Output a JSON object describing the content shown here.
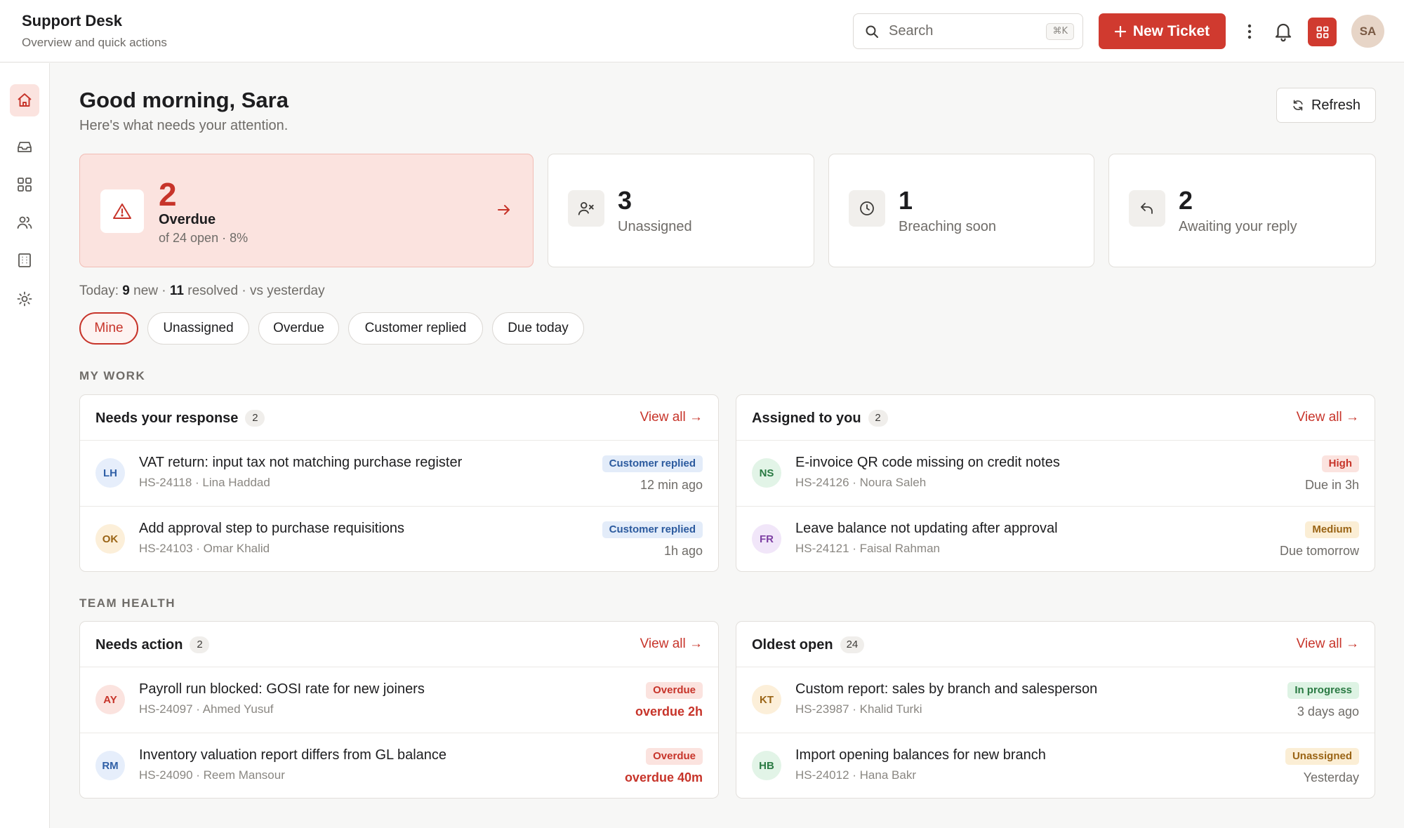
{
  "header": {
    "title": "Support Desk",
    "subtitle": "Overview and quick actions",
    "search_placeholder": "Search",
    "search_shortcut": "⌘K",
    "new_ticket_label": "New Ticket",
    "user_initials": "SA"
  },
  "greeting": {
    "title": "Good morning, Sara",
    "subtitle": "Here's what needs your attention.",
    "refresh_label": "Refresh"
  },
  "stats": {
    "overdue": {
      "value": "2",
      "label": "Overdue",
      "meta": "of 24 open · 8%"
    },
    "unassigned": {
      "value": "3",
      "label": "Unassigned"
    },
    "breaching": {
      "value": "1",
      "label": "Breaching soon"
    },
    "awaiting": {
      "value": "2",
      "label": "Awaiting your reply"
    }
  },
  "today": {
    "prefix": "Today:",
    "new_count": "9",
    "new_label": "new ·",
    "resolved_count": "11",
    "resolved_label": "resolved · vs yesterday"
  },
  "filters": [
    "Mine",
    "Unassigned",
    "Overdue",
    "Customer replied",
    "Due today"
  ],
  "sections": {
    "my_work": "MY WORK",
    "team_health": "TEAM HEALTH"
  },
  "view_all_label": "View all →",
  "cards": {
    "needs_response": {
      "title": "Needs your response",
      "count": "2",
      "rows": [
        {
          "initials": "LH",
          "title": "VAT return: input tax not matching purchase register",
          "sub": "HS-24118 · Lina Haddad",
          "badge": "Customer replied",
          "time": "12 min ago"
        },
        {
          "initials": "OK",
          "title": "Add approval step to purchase requisitions",
          "sub": "HS-24103 · Omar Khalid",
          "badge": "Customer replied",
          "time": "1h ago"
        }
      ]
    },
    "assigned": {
      "title": "Assigned to you",
      "count": "2",
      "rows": [
        {
          "initials": "NS",
          "title": "E-invoice QR code missing on credit notes",
          "sub": "HS-24126 · Noura Saleh",
          "badge": "High",
          "time": "Due in 3h"
        },
        {
          "initials": "FR",
          "title": "Leave balance not updating after approval",
          "sub": "HS-24121 · Faisal Rahman",
          "badge": "Medium",
          "time": "Due tomorrow"
        }
      ]
    },
    "needs_action": {
      "title": "Needs action",
      "count": "2",
      "rows": [
        {
          "initials": "AY",
          "title": "Payroll run blocked: GOSI rate for new joiners",
          "sub": "HS-24097 · Ahmed Yusuf",
          "badge": "Overdue",
          "time": "overdue 2h"
        },
        {
          "initials": "RM",
          "title": "Inventory valuation report differs from GL balance",
          "sub": "HS-24090 · Reem Mansour",
          "badge": "Overdue",
          "time": "overdue 40m"
        }
      ]
    },
    "oldest_open": {
      "title": "Oldest open",
      "count": "24",
      "rows": [
        {
          "initials": "KT",
          "title": "Custom report: sales by branch and salesperson",
          "sub": "HS-23987 · Khalid Turki",
          "badge": "In progress",
          "time": "3 days ago"
        },
        {
          "initials": "HB",
          "title": "Import opening balances for new branch",
          "sub": "HS-24012 · Hana Bakr",
          "badge": "Unassigned",
          "time": "Yesterday"
        }
      ]
    }
  },
  "colors": {
    "accent": "#d03a2f",
    "alert_bg": "#fbe3df",
    "background": "#f7f7f6"
  },
  "icons": {
    "sidebar": [
      "home-icon",
      "inbox-icon",
      "grid-icon",
      "users-icon",
      "building-icon",
      "gear-icon"
    ],
    "stats": [
      "warning-triangle-icon",
      "user-x-icon",
      "clock-icon",
      "reply-icon"
    ]
  }
}
